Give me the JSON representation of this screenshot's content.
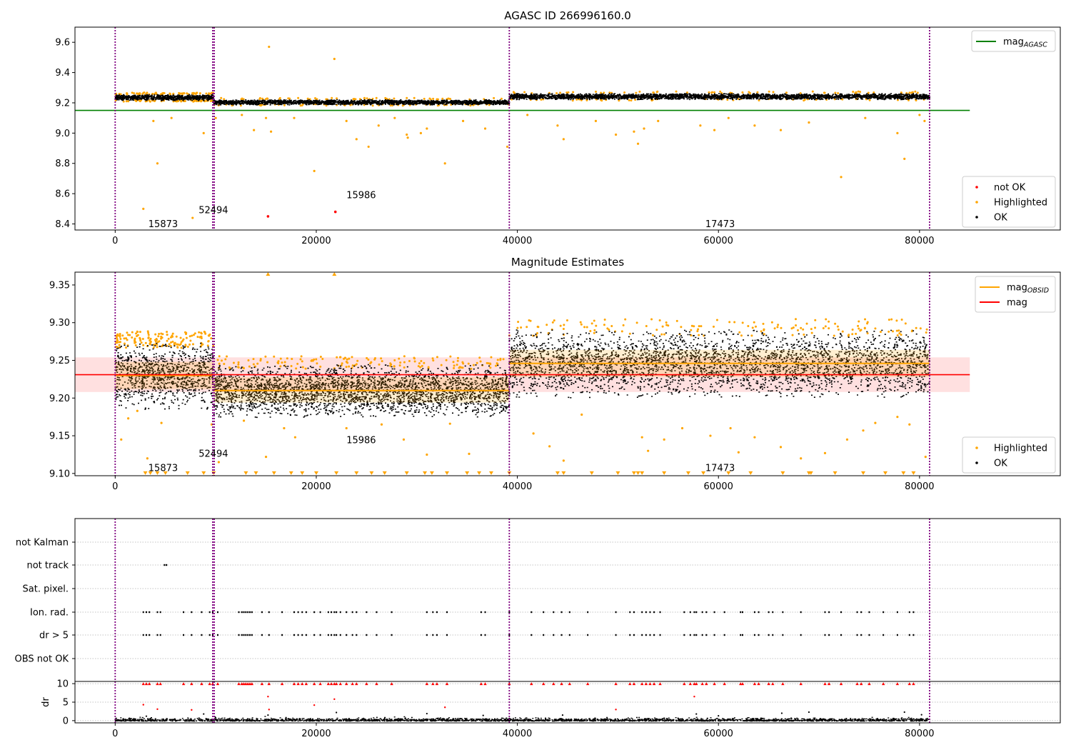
{
  "figure_title": "AGASC ID 266996160.0",
  "chart_data": [
    {
      "id": "top",
      "type": "scatter",
      "title": "AGASC ID 266996160.0",
      "xlabel": "",
      "ylabel": "",
      "xlim": [
        -4000,
        94000
      ],
      "ylim": [
        8.36,
        9.7
      ],
      "xticks": [
        0,
        20000,
        40000,
        60000,
        80000
      ],
      "yticks": [
        8.4,
        8.6,
        8.8,
        9.0,
        9.2,
        9.4,
        9.6
      ],
      "ytick_labels": [
        "8.4",
        "8.6",
        "8.8",
        "9.0",
        "9.2",
        "9.4",
        "9.6"
      ],
      "hlines": [
        {
          "name": "mag_AGASC",
          "y": 9.15,
          "x": [
            -4000,
            85000
          ],
          "color": "#008000"
        }
      ],
      "segments": [
        {
          "x": [
            0,
            9800
          ],
          "center": 9.238,
          "spread": 0.02
        },
        {
          "x": [
            9800,
            39200
          ],
          "center": 9.207,
          "spread": 0.017
        },
        {
          "x": [
            39200,
            81000
          ],
          "center": 9.245,
          "spread": 0.02
        }
      ],
      "vlines": [
        0,
        9700,
        9850,
        39200,
        81000
      ],
      "highlighted_points": [
        [
          2800,
          8.5
        ],
        [
          4200,
          8.8
        ],
        [
          3800,
          9.08
        ],
        [
          5600,
          9.1
        ],
        [
          8800,
          9.0
        ],
        [
          7700,
          8.44
        ],
        [
          10000,
          9.1
        ],
        [
          12600,
          9.12
        ],
        [
          13800,
          9.02
        ],
        [
          15000,
          9.1
        ],
        [
          15300,
          9.57
        ],
        [
          15500,
          9.01
        ],
        [
          17800,
          9.1
        ],
        [
          19800,
          8.75
        ],
        [
          21800,
          9.49
        ],
        [
          23000,
          9.08
        ],
        [
          24000,
          8.96
        ],
        [
          25200,
          8.91
        ],
        [
          26200,
          9.05
        ],
        [
          27800,
          9.1
        ],
        [
          29000,
          8.99
        ],
        [
          29100,
          8.97
        ],
        [
          30400,
          9.0
        ],
        [
          31000,
          9.03
        ],
        [
          32800,
          8.8
        ],
        [
          34600,
          9.08
        ],
        [
          36800,
          9.03
        ],
        [
          39000,
          8.91
        ],
        [
          41000,
          9.12
        ],
        [
          44000,
          9.05
        ],
        [
          44600,
          8.96
        ],
        [
          47800,
          9.08
        ],
        [
          49800,
          8.99
        ],
        [
          51600,
          9.01
        ],
        [
          52000,
          8.93
        ],
        [
          52600,
          9.03
        ],
        [
          54000,
          9.08
        ],
        [
          58200,
          9.05
        ],
        [
          59600,
          9.02
        ],
        [
          61000,
          9.1
        ],
        [
          63600,
          9.05
        ],
        [
          66200,
          9.02
        ],
        [
          69000,
          9.07
        ],
        [
          72200,
          8.71
        ],
        [
          74600,
          9.1
        ],
        [
          77800,
          9.0
        ],
        [
          78500,
          8.83
        ],
        [
          80000,
          9.12
        ],
        [
          80500,
          9.08
        ]
      ],
      "not_ok_points": [
        [
          15200,
          8.45
        ],
        [
          21900,
          8.48
        ]
      ],
      "annotations": [
        {
          "text": "15873",
          "x": 3300,
          "y": 8.38
        },
        {
          "text": "52494",
          "x": 8300,
          "y": 8.47
        },
        {
          "text": "15986",
          "x": 23000,
          "y": 8.57
        },
        {
          "text": "17473",
          "x": 58700,
          "y": 8.38
        }
      ],
      "legend_upper": {
        "position": "top-right",
        "entries": [
          {
            "label": "mag",
            "sub": "AGASC",
            "color": "#008000"
          }
        ]
      },
      "legend_lower": {
        "position": "bottom-right",
        "entries": [
          {
            "label": "not OK",
            "color": "#ff0000"
          },
          {
            "label": "Highlighted",
            "color": "#ffa500"
          },
          {
            "label": "OK",
            "color": "#000000"
          }
        ]
      }
    },
    {
      "id": "mid",
      "type": "scatter",
      "title": "Magnitude Estimates",
      "xlabel": "",
      "ylabel": "",
      "xlim": [
        -4000,
        94000
      ],
      "ylim": [
        9.097,
        9.367
      ],
      "xticks": [
        0,
        20000,
        40000,
        60000,
        80000
      ],
      "yticks": [
        9.1,
        9.15,
        9.2,
        9.25,
        9.3,
        9.35
      ],
      "ytick_labels": [
        "9.10",
        "9.15",
        "9.20",
        "9.25",
        "9.30",
        "9.35"
      ],
      "mag": 9.231,
      "mag_band": [
        9.208,
        9.254
      ],
      "mag_line_x": [
        -4000,
        85000
      ],
      "obsid_segments": [
        {
          "x": [
            0,
            9800
          ],
          "mag_obsid": 9.23,
          "band": [
            9.212,
            9.248
          ],
          "spread_low": 0.045,
          "spread_high": 0.045
        },
        {
          "x": [
            9800,
            39200
          ],
          "mag_obsid": 9.21,
          "band": [
            9.194,
            9.228
          ],
          "spread_low": 0.035,
          "spread_high": 0.035
        },
        {
          "x": [
            39200,
            81000
          ],
          "mag_obsid": 9.246,
          "band": [
            9.228,
            9.264
          ],
          "spread_low": 0.045,
          "spread_high": 0.045
        }
      ],
      "vlines": [
        0,
        9700,
        9850,
        39200,
        81000
      ],
      "highlighted_points": [
        [
          600,
          9.145
        ],
        [
          1300,
          9.173
        ],
        [
          2200,
          9.183
        ],
        [
          3200,
          9.12
        ],
        [
          4600,
          9.167
        ],
        [
          9600,
          9.165
        ],
        [
          10300,
          9.115
        ],
        [
          12800,
          9.17
        ],
        [
          15000,
          9.122
        ],
        [
          16800,
          9.16
        ],
        [
          17900,
          9.148
        ],
        [
          23000,
          9.16
        ],
        [
          26500,
          9.165
        ],
        [
          28700,
          9.145
        ],
        [
          31000,
          9.125
        ],
        [
          33300,
          9.166
        ],
        [
          35200,
          9.126
        ],
        [
          41600,
          9.153
        ],
        [
          43200,
          9.136
        ],
        [
          44600,
          9.117
        ],
        [
          46400,
          9.178
        ],
        [
          52400,
          9.148
        ],
        [
          53000,
          9.13
        ],
        [
          54600,
          9.145
        ],
        [
          56400,
          9.16
        ],
        [
          59200,
          9.15
        ],
        [
          61200,
          9.16
        ],
        [
          62000,
          9.128
        ],
        [
          63600,
          9.148
        ],
        [
          66200,
          9.135
        ],
        [
          68200,
          9.12
        ],
        [
          70600,
          9.127
        ],
        [
          72800,
          9.145
        ],
        [
          74400,
          9.157
        ],
        [
          75600,
          9.167
        ],
        [
          77800,
          9.175
        ],
        [
          79000,
          9.165
        ],
        [
          80600,
          9.122
        ]
      ],
      "lower_markers_y": 9.1,
      "lower_markers_x": [
        3000,
        3500,
        4200,
        5000,
        7200,
        8800,
        9800,
        13000,
        14000,
        15800,
        17500,
        18600,
        20000,
        22000,
        24000,
        25500,
        26800,
        29000,
        30800,
        31500,
        33000,
        35000,
        36200,
        37400,
        39200,
        44000,
        44600,
        47400,
        50000,
        51600,
        52000,
        52400,
        54600,
        57000,
        58500,
        61000,
        63200,
        66400,
        69000,
        69200,
        71600,
        74400,
        76600,
        78400,
        79400
      ],
      "upper_markers_y": 9.365,
      "upper_markers_x": [
        15200,
        21800
      ],
      "annotations": [
        {
          "text": "15873",
          "x": 3300,
          "y": 9.103
        },
        {
          "text": "52494",
          "x": 8300,
          "y": 9.122
        },
        {
          "text": "15986",
          "x": 23000,
          "y": 9.14
        },
        {
          "text": "17473",
          "x": 58700,
          "y": 9.103
        }
      ],
      "legend_upper": {
        "position": "top-right",
        "entries": [
          {
            "label": "mag",
            "sub": "OBSID",
            "color": "#ffa500"
          },
          {
            "label": "mag",
            "sub": "",
            "color": "#ff0000"
          }
        ]
      },
      "legend_lower": {
        "position": "bottom-right",
        "entries": [
          {
            "label": "Highlighted",
            "color": "#ffa500"
          },
          {
            "label": "OK",
            "color": "#000000"
          }
        ]
      }
    },
    {
      "id": "flags",
      "type": "scatter",
      "title": "",
      "xlim": [
        -4000,
        94000
      ],
      "categories": [
        "not Kalman",
        "not track",
        "Sat. pixel.",
        "Ion. rad.",
        "dr > 5",
        "OBS not OK"
      ],
      "vlines": [
        0,
        9700,
        9850,
        39200,
        81000
      ],
      "flag_points": {
        "not Kalman": [],
        "not track": [
          4900,
          5100
        ],
        "Sat. pixel.": [],
        "Ion. rad.": [
          2800,
          3100,
          3400,
          4200,
          4500,
          6800,
          7600,
          8600,
          9400,
          9700,
          10200,
          12300,
          12600,
          12800,
          13000,
          13200,
          13400,
          13600,
          14600,
          15300,
          16600,
          17800,
          18200,
          18600,
          19000,
          19800,
          20400,
          21200,
          21500,
          21800,
          22000,
          22400,
          23000,
          23600,
          24000,
          25000,
          26000,
          27500,
          31000,
          31600,
          32000,
          33000,
          36400,
          36800,
          39200,
          41400,
          42600,
          43600,
          44400,
          45200,
          47000,
          49800,
          51200,
          51600,
          52400,
          52800,
          53200,
          53600,
          54200,
          56600,
          57200,
          57600,
          57800,
          58400,
          58800,
          59600,
          60600,
          62200,
          62400,
          63600,
          64000,
          65000,
          65400,
          66400,
          68200,
          70600,
          71000,
          72200,
          73800,
          74200,
          75000,
          76400,
          77800,
          79000,
          79400
        ],
        "dr > 5": [
          2800,
          3100,
          3400,
          4200,
          4500,
          6800,
          7600,
          8600,
          9400,
          9700,
          10200,
          12300,
          12600,
          12800,
          13000,
          13200,
          13400,
          13600,
          14600,
          15300,
          16600,
          17800,
          18200,
          18600,
          19000,
          19800,
          20400,
          21200,
          21500,
          21800,
          22000,
          22400,
          23000,
          23600,
          24000,
          25000,
          26000,
          27500,
          31000,
          31600,
          32000,
          33000,
          36400,
          36800,
          39200,
          41400,
          42600,
          43600,
          44400,
          45200,
          47000,
          49800,
          51200,
          51600,
          52400,
          52800,
          53200,
          53600,
          54200,
          56600,
          57200,
          57600,
          57800,
          58400,
          58800,
          59600,
          60600,
          62200,
          62400,
          63600,
          64000,
          65000,
          65400,
          66400,
          68200,
          70600,
          71000,
          72200,
          73800,
          74200,
          75000,
          76400,
          77800,
          79000,
          79400
        ],
        "OBS not OK": []
      }
    },
    {
      "id": "dr",
      "type": "scatter",
      "title": "",
      "xlabel": "",
      "ylabel": "dr",
      "xlim": [
        -4000,
        94000
      ],
      "ylim": [
        -0.6,
        10.6
      ],
      "xticks": [
        0,
        20000,
        40000,
        60000,
        80000
      ],
      "yticks": [
        0,
        5,
        10
      ],
      "ytick_labels": [
        "0",
        "5",
        "10"
      ],
      "xtick_labels": [
        "0",
        "20000",
        "40000",
        "60000",
        "80000"
      ],
      "vlines": [
        0,
        9700,
        9850,
        39200,
        81000
      ],
      "clipped_y": 10,
      "clipped_x": [
        2800,
        3100,
        3400,
        4200,
        4500,
        6800,
        7600,
        8600,
        9400,
        9700,
        10200,
        12300,
        12600,
        12800,
        13000,
        13200,
        13400,
        13600,
        14600,
        15300,
        16600,
        17800,
        18200,
        18600,
        19000,
        19800,
        20400,
        21200,
        21500,
        21800,
        22000,
        22400,
        23000,
        23600,
        24000,
        25000,
        26000,
        27500,
        31000,
        31600,
        32000,
        33000,
        36400,
        36800,
        39200,
        41400,
        42600,
        43600,
        44400,
        45200,
        47000,
        49800,
        51200,
        51600,
        52400,
        52800,
        53200,
        53600,
        54200,
        56600,
        57200,
        57600,
        57800,
        58400,
        58800,
        59600,
        60600,
        62200,
        62400,
        63600,
        64000,
        65000,
        65400,
        66400,
        68200,
        70600,
        71000,
        72200,
        73800,
        74200,
        75000,
        76400,
        77800,
        79000,
        79400
      ],
      "red_points": [
        [
          2800,
          4.3
        ],
        [
          4200,
          3.1
        ],
        [
          7600,
          2.9
        ],
        [
          15200,
          6.5
        ],
        [
          15300,
          3.0
        ],
        [
          19800,
          4.2
        ],
        [
          21800,
          5.8
        ],
        [
          32800,
          3.6
        ],
        [
          49800,
          3.0
        ],
        [
          57600,
          6.5
        ]
      ],
      "black_outliers": [
        [
          3100,
          1.2
        ],
        [
          8800,
          1.8
        ],
        [
          15200,
          1.5
        ],
        [
          22000,
          2.2
        ],
        [
          31000,
          1.9
        ],
        [
          36600,
          1.4
        ],
        [
          44500,
          1.5
        ],
        [
          57800,
          1.8
        ],
        [
          60000,
          1.3
        ],
        [
          66300,
          2.0
        ],
        [
          69000,
          2.3
        ],
        [
          78500,
          2.3
        ],
        [
          80200,
          1.6
        ]
      ]
    }
  ]
}
